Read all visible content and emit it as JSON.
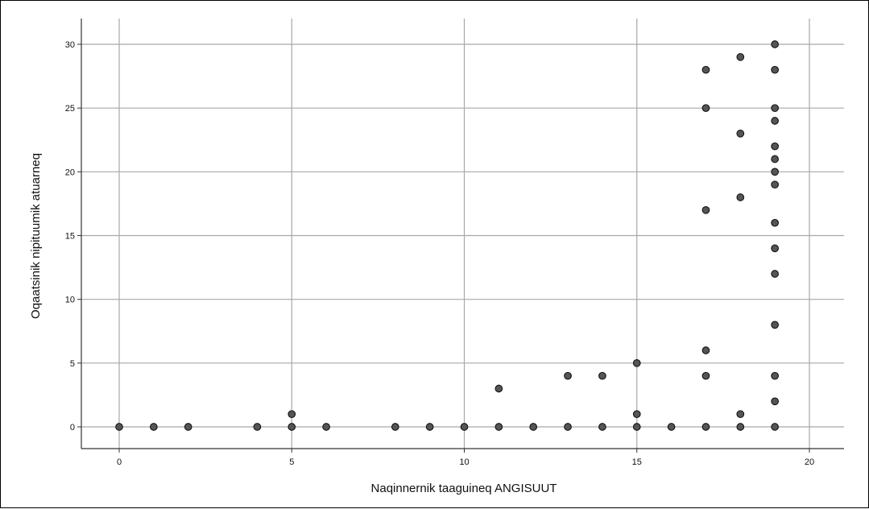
{
  "chart_data": {
    "type": "scatter",
    "title": "",
    "xlabel": "Naqinnernik taaguineq ANGISUUT",
    "ylabel": "Oqaatsinik nipituumik atuarneq",
    "xlim": [
      -1,
      21
    ],
    "ylim": [
      -1.5,
      32
    ],
    "xticks": [
      0,
      5,
      10,
      15,
      20
    ],
    "yticks": [
      0,
      5,
      10,
      15,
      20,
      25,
      30
    ],
    "grid": true,
    "marker_color": "#555555",
    "points": [
      [
        0,
        0
      ],
      [
        1,
        0
      ],
      [
        2,
        0
      ],
      [
        4,
        0
      ],
      [
        5,
        0
      ],
      [
        5,
        1
      ],
      [
        6,
        0
      ],
      [
        8,
        0
      ],
      [
        9,
        0
      ],
      [
        10,
        0
      ],
      [
        11,
        0
      ],
      [
        11,
        3
      ],
      [
        12,
        0
      ],
      [
        13,
        0
      ],
      [
        13,
        4
      ],
      [
        14,
        0
      ],
      [
        14,
        4
      ],
      [
        15,
        0
      ],
      [
        15,
        1
      ],
      [
        15,
        5
      ],
      [
        16,
        0
      ],
      [
        17,
        0
      ],
      [
        17,
        4
      ],
      [
        17,
        6
      ],
      [
        17,
        17
      ],
      [
        17,
        25
      ],
      [
        17,
        28
      ],
      [
        18,
        0
      ],
      [
        18,
        1
      ],
      [
        18,
        18
      ],
      [
        18,
        23
      ],
      [
        18,
        29
      ],
      [
        19,
        0
      ],
      [
        19,
        2
      ],
      [
        19,
        4
      ],
      [
        19,
        8
      ],
      [
        19,
        12
      ],
      [
        19,
        14
      ],
      [
        19,
        16
      ],
      [
        19,
        19
      ],
      [
        19,
        20
      ],
      [
        19,
        21
      ],
      [
        19,
        22
      ],
      [
        19,
        24
      ],
      [
        19,
        25
      ],
      [
        19,
        28
      ],
      [
        19,
        30
      ]
    ]
  }
}
